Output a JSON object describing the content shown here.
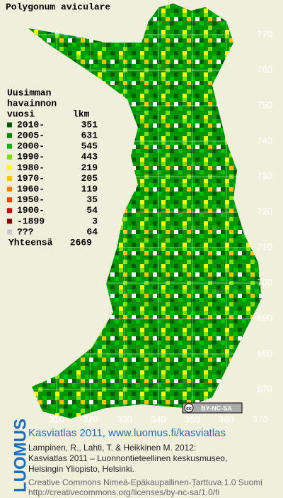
{
  "title": "Polygonum aviculare",
  "legend": {
    "heading": [
      "Uusimman",
      "havainnon",
      "vuosi"
    ],
    "count_heading": "lkm",
    "entries": [
      {
        "label": "2010-",
        "count": 351,
        "color": "#005c00"
      },
      {
        "label": "2005-",
        "count": 631,
        "color": "#008a00"
      },
      {
        "label": "2000-",
        "count": 545,
        "color": "#00c000"
      },
      {
        "label": "1990-",
        "count": 443,
        "color": "#7ee000"
      },
      {
        "label": "1980-",
        "count": 219,
        "color": "#ffff00"
      },
      {
        "label": "1970-",
        "count": 205,
        "color": "#ffc000"
      },
      {
        "label": "1960-",
        "count": 119,
        "color": "#ff8000"
      },
      {
        "label": "1950-",
        "count": 35,
        "color": "#ff4000"
      },
      {
        "label": "1900-",
        "count": 54,
        "color": "#d80000"
      },
      {
        "label": "-1899",
        "count": 3,
        "color": "#800000"
      },
      {
        "label": "???",
        "count": 64,
        "color": "#c8c8c8"
      }
    ],
    "total_label": "Yhteensä",
    "total": 2669
  },
  "map": {
    "yticks": [
      770,
      760,
      750,
      740,
      730,
      720,
      710,
      700,
      690,
      680,
      670
    ],
    "xticks": [
      310,
      320,
      330,
      340,
      350,
      360,
      370
    ]
  },
  "license_badge": [
    "cc",
    "BY-NC-SA"
  ],
  "footer": {
    "logo": "LUOMUS",
    "title": "Kasviatlas 2011, www.luomus.fi/kasviatlas",
    "citation": [
      "Lampinen, R., Lahti, T. & Heikkinen M. 2012:",
      "Kasviatlas 2011 – Luonnontieteellinen keskusmuseo,",
      "Helsingin Yliopisto, Helsinki."
    ],
    "license": [
      "Creative Commons Nimeä-Epäkaupallinen-Tarttuva 1.0 Suomi",
      "http://creativecommons.org/licenses/by-nc-sa/1.0/fi"
    ]
  }
}
